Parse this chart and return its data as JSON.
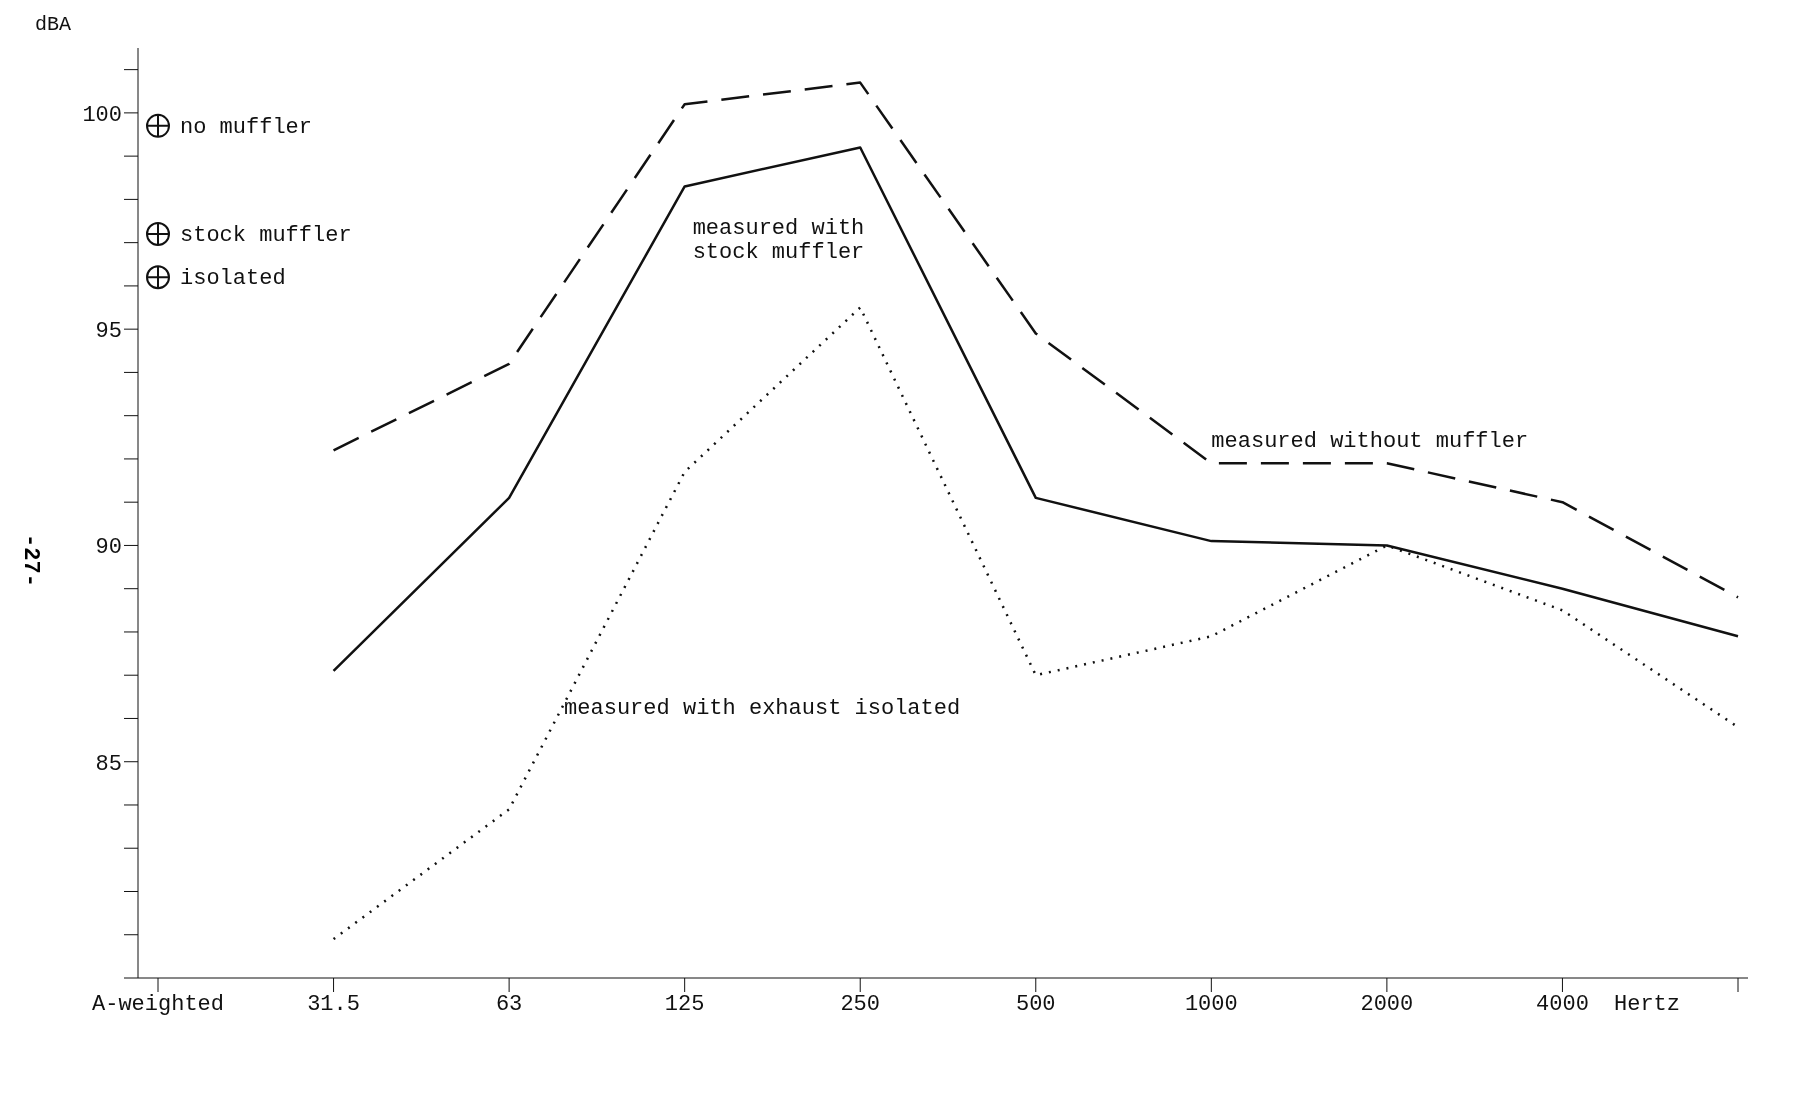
{
  "chart_data": {
    "type": "line",
    "ylabel": "dBA",
    "xlabel": "Hertz",
    "categories": [
      "A-weighted",
      "31.5",
      "63",
      "125",
      "250",
      "500",
      "1000",
      "2000",
      "4000",
      null
    ],
    "ylim": [
      80,
      101.5
    ],
    "yticks": [
      {
        "value": 80,
        "label": null
      },
      {
        "value": 81,
        "label": null
      },
      {
        "value": 82,
        "label": null
      },
      {
        "value": 83,
        "label": null
      },
      {
        "value": 84,
        "label": null
      },
      85,
      {
        "value": 86,
        "label": null
      },
      {
        "value": 87,
        "label": null
      },
      {
        "value": 88,
        "label": null
      },
      {
        "value": 89,
        "label": null
      },
      90,
      {
        "value": 91,
        "label": null
      },
      {
        "value": 92,
        "label": null
      },
      {
        "value": 93,
        "label": null
      },
      {
        "value": 94,
        "label": null
      },
      95,
      {
        "value": 96,
        "label": null
      },
      {
        "value": 97,
        "label": null
      },
      {
        "value": 98,
        "label": null
      },
      {
        "value": 99,
        "label": null
      },
      100,
      {
        "value": 101,
        "label": null
      }
    ],
    "legend": "top left",
    "marker": "none",
    "series": [
      {
        "name": "measured without muffler",
        "color": "#111111",
        "line_style": "dashed",
        "values": [
          null,
          92.2,
          94.2,
          100.2,
          100.7,
          94.9,
          91.9,
          91.9,
          91.0,
          88.8
        ]
      },
      {
        "name": "measured with stock muffler",
        "color": "#111111",
        "line_style": "solid",
        "values": [
          null,
          87.1,
          91.1,
          98.3,
          99.2,
          91.1,
          90.1,
          90.0,
          89.0,
          87.9
        ]
      },
      {
        "name": "measured with exhaust isolated",
        "color": "#111111",
        "line_style": "dotted",
        "values": [
          null,
          80.9,
          83.9,
          91.7,
          95.5,
          87.0,
          87.9,
          90.0,
          88.5,
          85.8
        ]
      },
      {
        "name": "no muffler",
        "type": "scatter",
        "marker": "circle",
        "color": "#111111",
        "x": [
          "A-weighted"
        ],
        "values": [
          99.7
        ]
      },
      {
        "name": "stock muffler",
        "type": "scatter",
        "marker": "circle",
        "color": "#111111",
        "x": [
          "A-weighted"
        ],
        "values": [
          97.2
        ]
      },
      {
        "name": "isolated",
        "type": "scatter",
        "marker": "circle",
        "color": "#111111",
        "x": [
          "A-weighted"
        ],
        "values": [
          96.2
        ]
      }
    ],
    "annotations": [
      "-27-"
    ]
  }
}
